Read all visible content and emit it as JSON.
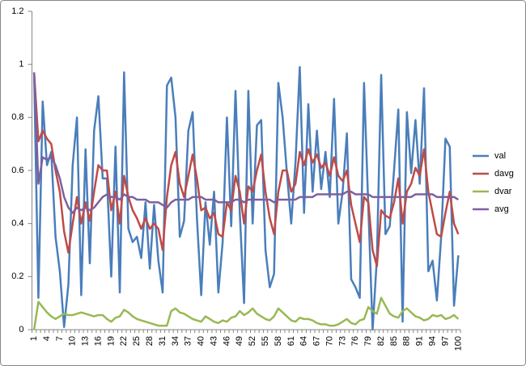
{
  "chart_data": {
    "type": "line",
    "categories": [
      1,
      null,
      null,
      4,
      null,
      null,
      7,
      null,
      null,
      10,
      null,
      null,
      13,
      null,
      null,
      16,
      null,
      null,
      19,
      null,
      null,
      22,
      null,
      null,
      25,
      null,
      null,
      28,
      null,
      null,
      31,
      null,
      null,
      34,
      null,
      null,
      37,
      null,
      null,
      40,
      null,
      null,
      43,
      null,
      null,
      46,
      null,
      null,
      49,
      null,
      null,
      52,
      null,
      null,
      55,
      null,
      null,
      58,
      null,
      null,
      61,
      null,
      null,
      64,
      null,
      null,
      67,
      null,
      null,
      70,
      null,
      null,
      73,
      null,
      null,
      76,
      null,
      null,
      79,
      null,
      null,
      82,
      null,
      null,
      85,
      null,
      null,
      88,
      null,
      null,
      91,
      null,
      null,
      94,
      null,
      null,
      97,
      null,
      null,
      100
    ],
    "ylim": [
      0,
      1.2
    ],
    "yticks": [
      0,
      0.2,
      0.4,
      0.6,
      0.8,
      1,
      1.2
    ],
    "grid": false,
    "legend": "right",
    "series": [
      {
        "name": "val",
        "color": "#4a7ebb",
        "values": [
          0.97,
          0.12,
          0.86,
          0.62,
          0.67,
          0.35,
          0.22,
          0.01,
          0.17,
          0.62,
          0.8,
          0.13,
          0.68,
          0.25,
          0.75,
          0.88,
          0.57,
          0.57,
          0.2,
          0.69,
          0.14,
          0.97,
          0.38,
          0.33,
          0.35,
          0.27,
          0.48,
          0.23,
          0.47,
          0.26,
          0.14,
          0.92,
          0.95,
          0.8,
          0.35,
          0.41,
          0.75,
          0.82,
          0.42,
          0.13,
          0.48,
          0.32,
          0.52,
          0.14,
          0.33,
          0.8,
          0.39,
          0.9,
          0.44,
          0.1,
          0.9,
          0.4,
          0.77,
          0.79,
          0.3,
          0.16,
          0.21,
          0.93,
          0.8,
          0.59,
          0.4,
          0.63,
          0.99,
          0.44,
          0.85,
          0.52,
          0.75,
          0.53,
          0.67,
          0.5,
          0.87,
          0.4,
          0.52,
          0.74,
          0.19,
          0.16,
          0.12,
          0.93,
          0.46,
          0.0,
          0.27,
          0.96,
          0.36,
          0.39,
          0.6,
          0.83,
          0.03,
          0.82,
          0.59,
          0.79,
          0.55,
          0.91,
          0.22,
          0.26,
          0.11,
          0.35,
          0.72,
          0.69,
          0.09,
          0.28
        ]
      },
      {
        "name": "davg",
        "color": "#be4b48",
        "values": [
          0.97,
          0.71,
          0.75,
          0.72,
          0.7,
          0.6,
          0.52,
          0.37,
          0.29,
          0.4,
          0.5,
          0.4,
          0.48,
          0.41,
          0.52,
          0.62,
          0.6,
          0.6,
          0.45,
          0.52,
          0.4,
          0.58,
          0.5,
          0.45,
          0.42,
          0.38,
          0.42,
          0.38,
          0.4,
          0.38,
          0.3,
          0.5,
          0.62,
          0.67,
          0.55,
          0.5,
          0.58,
          0.66,
          0.57,
          0.45,
          0.46,
          0.42,
          0.44,
          0.36,
          0.35,
          0.48,
          0.45,
          0.58,
          0.52,
          0.4,
          0.54,
          0.52,
          0.6,
          0.66,
          0.52,
          0.42,
          0.36,
          0.52,
          0.6,
          0.6,
          0.52,
          0.55,
          0.67,
          0.62,
          0.68,
          0.63,
          0.66,
          0.61,
          0.63,
          0.58,
          0.65,
          0.58,
          0.56,
          0.6,
          0.47,
          0.4,
          0.33,
          0.5,
          0.48,
          0.3,
          0.24,
          0.45,
          0.43,
          0.42,
          0.48,
          0.57,
          0.4,
          0.52,
          0.55,
          0.61,
          0.58,
          0.68,
          0.52,
          0.44,
          0.36,
          0.35,
          0.44,
          0.52,
          0.4,
          0.36
        ]
      },
      {
        "name": "dvar",
        "color": "#98b954",
        "values": [
          0,
          0.105,
          0.085,
          0.065,
          0.05,
          0.04,
          0.05,
          0.06,
          0.055,
          0.055,
          0.06,
          0.065,
          0.06,
          0.055,
          0.05,
          0.055,
          0.055,
          0.04,
          0.03,
          0.045,
          0.05,
          0.075,
          0.065,
          0.05,
          0.04,
          0.035,
          0.03,
          0.025,
          0.02,
          0.015,
          0.015,
          0.015,
          0.07,
          0.08,
          0.065,
          0.06,
          0.05,
          0.04,
          0.035,
          0.03,
          0.05,
          0.04,
          0.03,
          0.025,
          0.035,
          0.03,
          0.045,
          0.05,
          0.07,
          0.055,
          0.065,
          0.08,
          0.06,
          0.05,
          0.04,
          0.035,
          0.05,
          0.08,
          0.065,
          0.05,
          0.035,
          0.03,
          0.045,
          0.04,
          0.04,
          0.035,
          0.025,
          0.02,
          0.02,
          0.015,
          0.015,
          0.02,
          0.03,
          0.04,
          0.025,
          0.02,
          0.035,
          0.04,
          0.085,
          0.07,
          0.06,
          0.12,
          0.09,
          0.06,
          0.05,
          0.045,
          0.07,
          0.08,
          0.065,
          0.05,
          0.045,
          0.035,
          0.04,
          0.055,
          0.05,
          0.055,
          0.04,
          0.045,
          0.055,
          0.04
        ]
      },
      {
        "name": "avg",
        "color": "#7d60a0",
        "values": [
          0.97,
          0.55,
          0.65,
          0.64,
          0.65,
          0.62,
          0.57,
          0.5,
          0.46,
          0.44,
          0.46,
          0.45,
          0.46,
          0.45,
          0.46,
          0.48,
          0.5,
          0.51,
          0.5,
          0.5,
          0.49,
          0.51,
          0.5,
          0.5,
          0.49,
          0.49,
          0.49,
          0.48,
          0.48,
          0.48,
          0.47,
          0.46,
          0.48,
          0.49,
          0.49,
          0.49,
          0.49,
          0.5,
          0.5,
          0.5,
          0.49,
          0.49,
          0.49,
          0.48,
          0.48,
          0.48,
          0.48,
          0.49,
          0.49,
          0.48,
          0.49,
          0.49,
          0.49,
          0.49,
          0.49,
          0.49,
          0.48,
          0.49,
          0.49,
          0.49,
          0.49,
          0.49,
          0.5,
          0.5,
          0.5,
          0.5,
          0.51,
          0.51,
          0.51,
          0.51,
          0.51,
          0.51,
          0.51,
          0.52,
          0.52,
          0.51,
          0.51,
          0.51,
          0.51,
          0.5,
          0.5,
          0.5,
          0.5,
          0.5,
          0.5,
          0.5,
          0.5,
          0.5,
          0.5,
          0.51,
          0.51,
          0.51,
          0.51,
          0.51,
          0.5,
          0.5,
          0.5,
          0.5,
          0.5,
          0.49
        ]
      }
    ]
  }
}
